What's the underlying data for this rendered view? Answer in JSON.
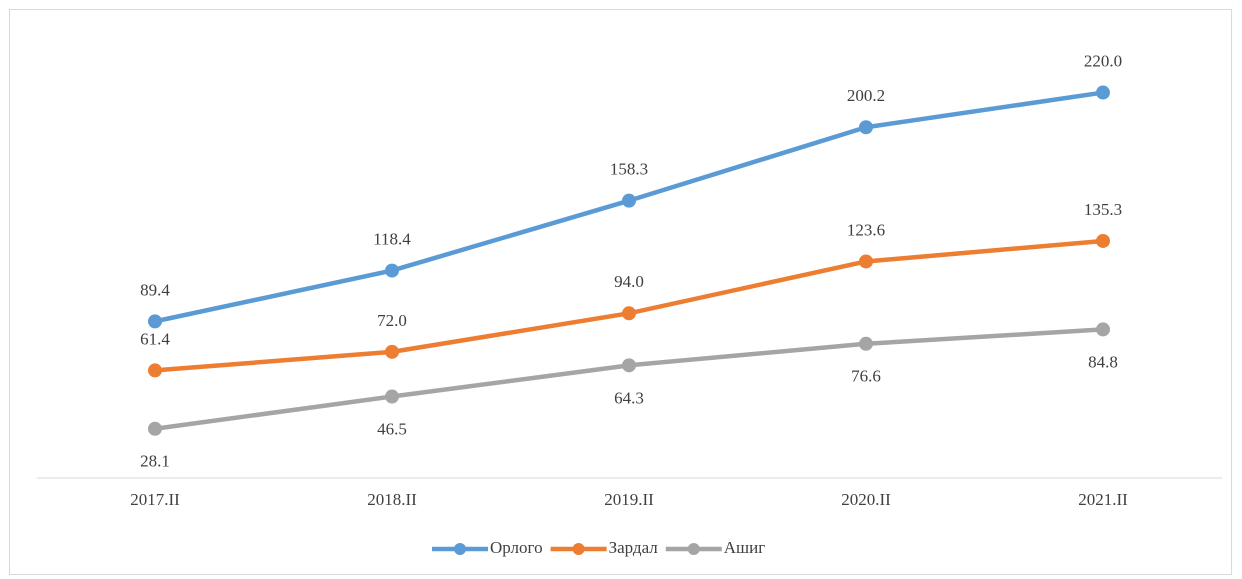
{
  "chart_data": {
    "type": "line",
    "categories": [
      "2017.II",
      "2018.II",
      "2019.II",
      "2020.II",
      "2021.II"
    ],
    "series": [
      {
        "name": "Орлого",
        "color": "#5b9bd5",
        "label_position": "above",
        "values": [
          89.4,
          118.4,
          158.3,
          200.2,
          220.0
        ],
        "value_labels": [
          "89.4",
          "118.4",
          "158.3",
          "200.2",
          "220.0"
        ]
      },
      {
        "name": "Зардал",
        "color": "#ed7d31",
        "label_position": "above",
        "values": [
          61.4,
          72.0,
          94.0,
          123.6,
          135.3
        ],
        "value_labels": [
          "61.4",
          "72.0",
          "94.0",
          "123.6",
          "135.3"
        ]
      },
      {
        "name": "Ашиг",
        "color": "#a5a5a5",
        "label_position": "below",
        "values": [
          28.1,
          46.5,
          64.3,
          76.6,
          84.8
        ],
        "value_labels": [
          "28.1",
          "46.5",
          "64.3",
          "76.6",
          "84.8"
        ]
      }
    ],
    "ylim": [
      0,
      250
    ],
    "legend": "bottom"
  }
}
